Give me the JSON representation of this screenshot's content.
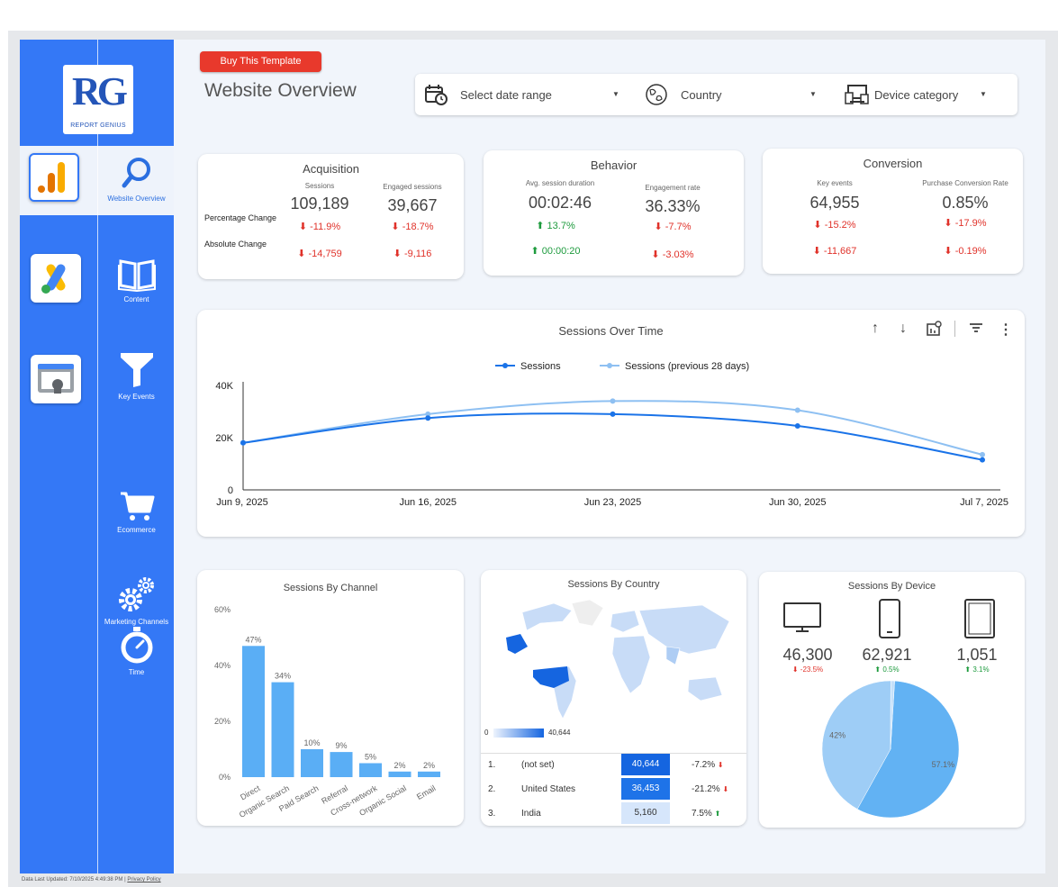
{
  "brand": {
    "logo_text": "RG",
    "logo_sub": "REPORT GENIUS"
  },
  "nav": [
    {
      "label": "Website Overview",
      "icon": "search-icon",
      "active": true
    },
    {
      "label": "Content",
      "icon": "book-icon"
    },
    {
      "label": "Key Events",
      "icon": "funnel-icon"
    },
    {
      "label": "Ecommerce",
      "icon": "cart-icon"
    },
    {
      "label": "Marketing Channels",
      "icon": "gears-icon"
    },
    {
      "label": "Time",
      "icon": "stopwatch-icon"
    }
  ],
  "apps": [
    "google-analytics-icon",
    "google-ads-icon",
    "search-console-icon"
  ],
  "header": {
    "buy_button": "Buy This Template",
    "title": "Website Overview"
  },
  "filters": {
    "date": "Select date range",
    "country": "Country",
    "device": "Device category"
  },
  "acquisition": {
    "title": "Acquisition",
    "col1_label": "Sessions",
    "col2_label": "Engaged sessions",
    "col1_value": "109,189",
    "col2_value": "39,667",
    "row1_label": "Percentage Change",
    "row2_label": "Absolute Change",
    "col1_pct": "-11.9%",
    "col2_pct": "-18.7%",
    "col1_abs": "-14,759",
    "col2_abs": "-9,116"
  },
  "behavior": {
    "title": "Behavior",
    "col1_label": "Avg. session duration",
    "col2_label": "Engagement rate",
    "col1_value": "00:02:46",
    "col2_value": "36.33%",
    "col1_pct": "13.7%",
    "col2_pct": "-7.7%",
    "col1_abs": "00:00:20",
    "col2_abs": "-3.03%"
  },
  "conversion": {
    "title": "Conversion",
    "col1_label": "Key events",
    "col2_label": "Purchase Conversion Rate",
    "col1_value": "64,955",
    "col2_value": "0.85%",
    "col1_pct": "-15.2%",
    "col2_pct": "-17.9%",
    "col1_abs": "-11,667",
    "col2_abs": "-0.19%"
  },
  "sessions_chart": {
    "title": "Sessions Over Time",
    "toolbar": [
      "sort-ascending-icon",
      "sort-descending-icon",
      "explore-chart-icon",
      "filter-icon",
      "more-vert-icon"
    ]
  },
  "channel_chart": {
    "title": "Sessions By Channel"
  },
  "country": {
    "title": "Sessions By Country",
    "scale_min": "0",
    "scale_max": "40,644",
    "rows": [
      {
        "rank": "1.",
        "name": "(not set)",
        "value": "40,644",
        "change": "-7.2%",
        "dir": "down",
        "shade": "#1565e0",
        "text": "#ffffff"
      },
      {
        "rank": "2.",
        "name": "United States",
        "value": "36,453",
        "change": "-21.2%",
        "dir": "down",
        "shade": "#1e73e8",
        "text": "#ffffff"
      },
      {
        "rank": "3.",
        "name": "India",
        "value": "5,160",
        "change": "7.5%",
        "dir": "up",
        "shade": "#d6e6fb",
        "text": "#333333"
      }
    ]
  },
  "device": {
    "title": "Sessions By Device",
    "items": [
      {
        "icon": "desktop-icon",
        "value": "46,300",
        "change": "-23.5%",
        "dir": "down"
      },
      {
        "icon": "mobile-icon",
        "value": "62,921",
        "change": "0.5%",
        "dir": "up"
      },
      {
        "icon": "tablet-icon",
        "value": "1,051",
        "change": "3.1%",
        "dir": "up"
      }
    ]
  },
  "chart_data": [
    {
      "type": "line",
      "title": "Sessions Over Time",
      "x": [
        "Jun 9, 2025",
        "Jun 16, 2025",
        "Jun 23, 2025",
        "Jun 30, 2025",
        "Jul 7, 2025"
      ],
      "series": [
        {
          "name": "Sessions",
          "values": [
            18000,
            27500,
            29000,
            24500,
            11500
          ],
          "color": "#1a73e8"
        },
        {
          "name": "Sessions (previous 28 days)",
          "values": [
            18000,
            29000,
            34000,
            30500,
            13500
          ],
          "color": "#8ec0f2"
        }
      ],
      "yticks": [
        "0",
        "20K",
        "40K"
      ],
      "ylim": [
        0,
        40000
      ],
      "legend": "top"
    },
    {
      "type": "bar",
      "title": "Sessions By Channel",
      "categories": [
        "Direct",
        "Organic Search",
        "Paid Search",
        "Referral",
        "Cross-network",
        "Organic Social",
        "Email"
      ],
      "values": [
        47,
        34,
        10,
        9,
        5,
        2,
        2
      ],
      "value_labels": [
        "47%",
        "34%",
        "10%",
        "9%",
        "5%",
        "2%",
        "2%"
      ],
      "yticks": [
        "0%",
        "20%",
        "40%",
        "60%"
      ],
      "ylim": [
        0,
        60
      ],
      "color": "#5aaef5"
    },
    {
      "type": "pie",
      "title": "Sessions By Device",
      "values": [
        57.1,
        42,
        0.9
      ],
      "labels": [
        "57.1%",
        "42%",
        ""
      ],
      "colors": [
        "#62b2f3",
        "#9ecdf6",
        "#c4e0fa"
      ]
    }
  ],
  "footer": {
    "updated": "Data Last Updated: 7/10/2025 4:49:38 PM",
    "sep": "|",
    "privacy": "Privacy Policy"
  }
}
